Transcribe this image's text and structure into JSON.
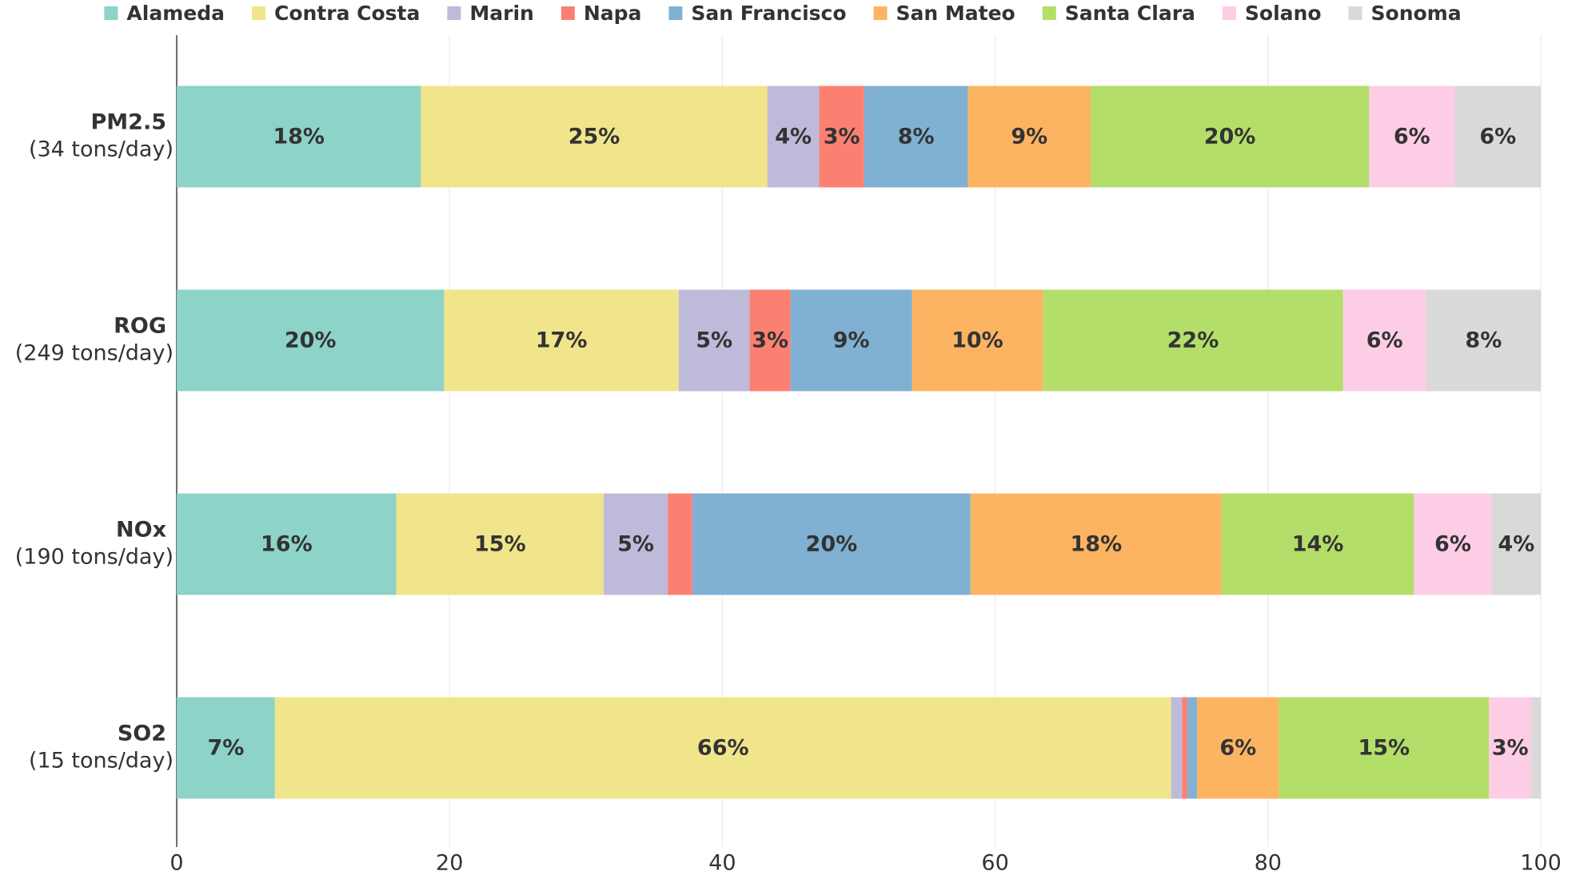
{
  "chart_data": {
    "type": "stacked-bar-horizontal",
    "categories": [
      "PM2.5",
      "ROG",
      "NOx",
      "SO2"
    ],
    "category_sublabels": [
      "(34 tons/day)",
      "(249 tons/day)",
      "(190 tons/day)",
      "(15 tons/day)"
    ],
    "series": [
      {
        "name": "Alameda",
        "color": "#8dd3c7",
        "values": [
          17.9,
          19.6,
          16.1,
          7.2
        ],
        "value_labels": [
          "18%",
          "20%",
          "16%",
          "7%"
        ]
      },
      {
        "name": "Contra Costa",
        "color": "#f0e58a",
        "values": [
          25.4,
          17.2,
          15.2,
          65.7
        ],
        "value_labels": [
          "25%",
          "17%",
          "15%",
          "66%"
        ]
      },
      {
        "name": "Marin",
        "color": "#bebada",
        "values": [
          3.8,
          5.2,
          4.7,
          0.8
        ],
        "value_labels": [
          "4%",
          "5%",
          "5%",
          null
        ]
      },
      {
        "name": "Napa",
        "color": "#fb8072",
        "values": [
          3.3,
          3.0,
          1.8,
          0.4
        ],
        "value_labels": [
          "3%",
          "3%",
          null,
          null
        ]
      },
      {
        "name": "San Francisco",
        "color": "#80b1d3",
        "values": [
          7.6,
          8.9,
          20.4,
          0.7
        ],
        "value_labels": [
          "8%",
          "9%",
          "20%",
          null
        ]
      },
      {
        "name": "San Mateo",
        "color": "#fdb462",
        "values": [
          9.0,
          9.6,
          18.4,
          6.0
        ],
        "value_labels": [
          "9%",
          "10%",
          "18%",
          "6%"
        ]
      },
      {
        "name": "Santa Clara",
        "color": "#b3de69",
        "values": [
          20.4,
          22.0,
          14.1,
          15.4
        ],
        "value_labels": [
          "20%",
          "22%",
          "14%",
          "15%"
        ]
      },
      {
        "name": "Solano",
        "color": "#fccde5",
        "values": [
          6.3,
          6.1,
          5.7,
          3.1
        ],
        "value_labels": [
          "6%",
          "6%",
          "6%",
          "3%"
        ]
      },
      {
        "name": "Sonoma",
        "color": "#d9d9d9",
        "values": [
          6.3,
          8.4,
          3.6,
          0.7
        ],
        "value_labels": [
          "6%",
          "8%",
          "4%",
          null
        ]
      }
    ],
    "xlim": [
      0,
      100
    ],
    "xticks": [
      0,
      20,
      40,
      60,
      80,
      100
    ],
    "grid": true,
    "legend": "top"
  }
}
